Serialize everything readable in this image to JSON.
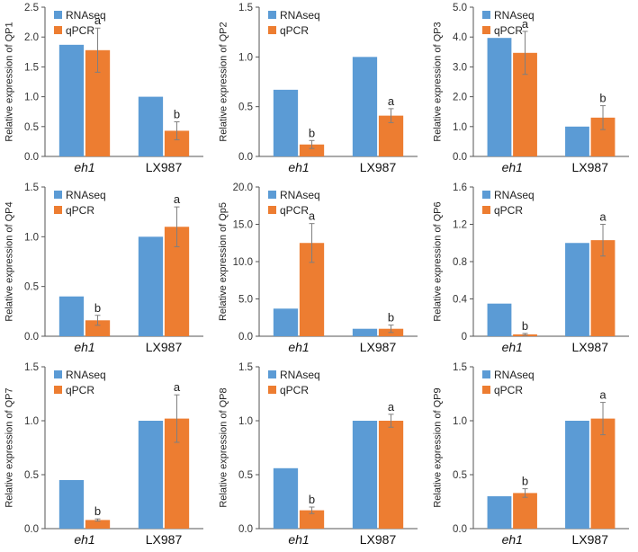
{
  "figure": {
    "legend_labels": [
      "RNAseq",
      "qPCR"
    ],
    "colors": {
      "RNAseq": "#5b9bd5",
      "qPCR": "#ed7d31",
      "axis": "#555555",
      "error_bar": "#7f7f7f"
    }
  },
  "chart_data": [
    {
      "type": "bar",
      "panel": "QP1",
      "ylabel": "Relative expression of QP1",
      "categories": [
        "eh1",
        "LX987"
      ],
      "ylim": [
        0,
        2.5
      ],
      "yticks": [
        "0.0",
        "0.5",
        "1.0",
        "1.5",
        "2.0",
        "2.5"
      ],
      "series": [
        {
          "name": "RNAseq",
          "values": [
            1.87,
            1.0
          ]
        },
        {
          "name": "qPCR",
          "values": [
            1.78,
            0.43
          ],
          "errors": [
            0.37,
            0.15
          ],
          "letters": [
            "a",
            "b"
          ]
        }
      ]
    },
    {
      "type": "bar",
      "panel": "QP2",
      "ylabel": "Relative expression of QP2",
      "categories": [
        "eh1",
        "LX987"
      ],
      "ylim": [
        0,
        1.5
      ],
      "yticks": [
        "0.0",
        "0.5",
        "1.0",
        "1.5"
      ],
      "series": [
        {
          "name": "RNAseq",
          "values": [
            0.67,
            1.0
          ]
        },
        {
          "name": "qPCR",
          "values": [
            0.12,
            0.41
          ],
          "errors": [
            0.04,
            0.07
          ],
          "letters": [
            "b",
            "a"
          ]
        }
      ]
    },
    {
      "type": "bar",
      "panel": "QP3",
      "ylabel": "Relative expression of QP3",
      "categories": [
        "eh1",
        "LX987"
      ],
      "ylim": [
        0,
        5.0
      ],
      "yticks": [
        "0.0",
        "1.0",
        "2.0",
        "3.0",
        "4.0",
        "5.0"
      ],
      "series": [
        {
          "name": "RNAseq",
          "values": [
            3.97,
            1.0
          ]
        },
        {
          "name": "qPCR",
          "values": [
            3.47,
            1.3
          ],
          "errors": [
            0.72,
            0.4
          ],
          "letters": [
            "a",
            "b"
          ]
        }
      ]
    },
    {
      "type": "bar",
      "panel": "QP4",
      "ylabel": "Relative expression of QP4",
      "categories": [
        "eh1",
        "LX987"
      ],
      "ylim": [
        0,
        1.5
      ],
      "yticks": [
        "0.0",
        "0.5",
        "1.0",
        "1.5"
      ],
      "series": [
        {
          "name": "RNAseq",
          "values": [
            0.4,
            1.0
          ]
        },
        {
          "name": "qPCR",
          "values": [
            0.16,
            1.1
          ],
          "errors": [
            0.05,
            0.2
          ],
          "letters": [
            "b",
            "a"
          ]
        }
      ]
    },
    {
      "type": "bar",
      "panel": "Qp5",
      "ylabel": "Relative expression of Qp5",
      "categories": [
        "eh1",
        "LX987"
      ],
      "ylim": [
        0,
        20.0
      ],
      "yticks": [
        "0.0",
        "5.0",
        "10.0",
        "15.0",
        "20.0"
      ],
      "series": [
        {
          "name": "RNAseq",
          "values": [
            3.7,
            1.0
          ]
        },
        {
          "name": "qPCR",
          "values": [
            12.5,
            1.0
          ],
          "errors": [
            2.6,
            0.5
          ],
          "letters": [
            "a",
            "b"
          ]
        }
      ]
    },
    {
      "type": "bar",
      "panel": "QP6",
      "ylabel": "Relative expression of QP6",
      "categories": [
        "eh1",
        "LX987"
      ],
      "ylim": [
        0,
        1.6
      ],
      "yticks": [
        "0",
        "0.4",
        "0.8",
        "1.2",
        "1.6"
      ],
      "series": [
        {
          "name": "RNAseq",
          "values": [
            0.35,
            1.0
          ]
        },
        {
          "name": "qPCR",
          "values": [
            0.02,
            1.03
          ],
          "errors": [
            0.01,
            0.17
          ],
          "letters": [
            "b",
            "a"
          ]
        }
      ]
    },
    {
      "type": "bar",
      "panel": "QP7",
      "ylabel": "Relative expression of QP7",
      "categories": [
        "eh1",
        "LX987"
      ],
      "ylim": [
        0,
        1.5
      ],
      "yticks": [
        "0.0",
        "0.5",
        "1.0",
        "1.5"
      ],
      "series": [
        {
          "name": "RNAseq",
          "values": [
            0.45,
            1.0
          ]
        },
        {
          "name": "qPCR",
          "values": [
            0.08,
            1.02
          ],
          "errors": [
            0.01,
            0.22
          ],
          "letters": [
            "b",
            "a"
          ]
        }
      ]
    },
    {
      "type": "bar",
      "panel": "QP8",
      "ylabel": "Relative expression of QP8",
      "categories": [
        "eh1",
        "LX987"
      ],
      "ylim": [
        0,
        1.5
      ],
      "yticks": [
        "0.0",
        "0.5",
        "1.0",
        "1.5"
      ],
      "series": [
        {
          "name": "RNAseq",
          "values": [
            0.56,
            1.0
          ]
        },
        {
          "name": "qPCR",
          "values": [
            0.17,
            1.0
          ],
          "errors": [
            0.03,
            0.06
          ],
          "letters": [
            "b",
            "a"
          ]
        }
      ]
    },
    {
      "type": "bar",
      "panel": "QP9",
      "ylabel": "Relative expression of QP9",
      "categories": [
        "eh1",
        "LX987"
      ],
      "ylim": [
        0,
        1.5
      ],
      "yticks": [
        "0.0",
        "0.5",
        "1.0",
        "1.5"
      ],
      "series": [
        {
          "name": "RNAseq",
          "values": [
            0.3,
            1.0
          ]
        },
        {
          "name": "qPCR",
          "values": [
            0.33,
            1.02
          ],
          "errors": [
            0.04,
            0.15
          ],
          "letters": [
            "b",
            "a"
          ]
        }
      ]
    }
  ]
}
